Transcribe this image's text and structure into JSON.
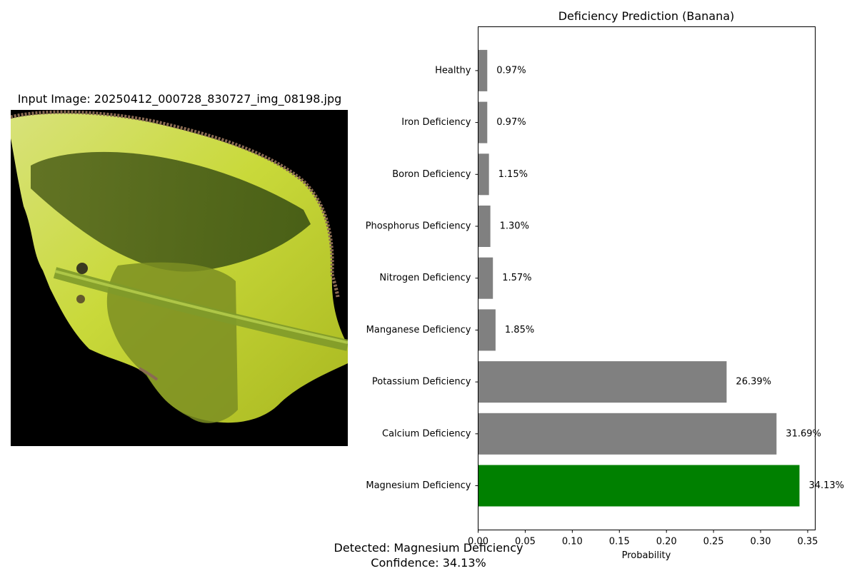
{
  "image_panel": {
    "title": "Input Image: 20250412_000728_830727_img_08198.jpg"
  },
  "chart_data": {
    "type": "bar",
    "orientation": "horizontal",
    "title": "Deficiency Prediction (Banana)",
    "xlabel": "Probability",
    "ylabel": "",
    "xlim": [
      0,
      0.358
    ],
    "xticks": [
      0.0,
      0.05,
      0.1,
      0.15,
      0.2,
      0.25,
      0.3,
      0.35
    ],
    "xtick_labels": [
      "0.00",
      "0.05",
      "0.10",
      "0.15",
      "0.20",
      "0.25",
      "0.30",
      "0.35"
    ],
    "categories": [
      "Magnesium Deficiency",
      "Calcium Deficiency",
      "Potassium Deficiency",
      "Manganese Deficiency",
      "Nitrogen Deficiency",
      "Phosphorus Deficiency",
      "Boron Deficiency",
      "Iron Deficiency",
      "Healthy"
    ],
    "values": [
      0.3413,
      0.3169,
      0.2639,
      0.0185,
      0.0157,
      0.013,
      0.0115,
      0.0097,
      0.0097
    ],
    "value_labels": [
      "34.13%",
      "31.69%",
      "26.39%",
      "1.85%",
      "1.57%",
      "1.30%",
      "1.15%",
      "0.97%",
      "0.97%"
    ],
    "highlight_index": 0,
    "colors": {
      "highlight": "#008000",
      "default": "#808080"
    },
    "grid": false,
    "legend": "none"
  },
  "footer": {
    "detected": "Detected: Magnesium Deficiency",
    "confidence": "Confidence: 34.13%"
  }
}
